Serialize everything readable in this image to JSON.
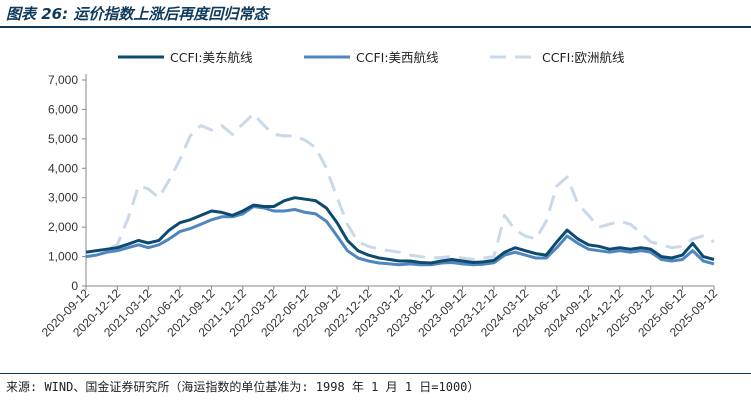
{
  "header": {
    "title": "图表 26:  运价指数上涨后再度回归常态"
  },
  "footer": {
    "source": "来源: WIND、国金证券研究所（海运指数的单位基准为: 1998 年 1 月 1 日=1000）"
  },
  "colors": {
    "us_east": "#0d4a6e",
    "us_west": "#4f86c0",
    "europe": "#c9d9ea",
    "axis": "#888888",
    "rule": "#0f3a5c"
  },
  "chart_data": {
    "type": "line",
    "title": "",
    "xlabel": "",
    "ylabel": "",
    "ylim": [
      0,
      7000
    ],
    "yticks": [
      0,
      1000,
      2000,
      3000,
      4000,
      5000,
      6000,
      7000
    ],
    "ytick_labels": [
      "0",
      "1,000",
      "2,000",
      "3,000",
      "4,000",
      "5,000",
      "6,000",
      "7,000"
    ],
    "xticks": [
      "2020-09-12",
      "2020-12-12",
      "2021-03-12",
      "2021-06-12",
      "2021-09-12",
      "2021-12-12",
      "2022-03-12",
      "2022-06-12",
      "2022-09-12",
      "2022-12-12",
      "2023-03-12",
      "2023-06-12",
      "2023-09-12",
      "2023-12-12",
      "2024-03-12",
      "2024-06-12",
      "2024-09-12",
      "2024-12-12",
      "2025-03-12",
      "2025-06-12",
      "2025-09-12"
    ],
    "legend_position": "top",
    "series": [
      {
        "name": "CCFI:美东航线",
        "style": "solid-thick",
        "x": [
          "2020-09-12",
          "2020-10-12",
          "2020-11-12",
          "2020-12-12",
          "2021-01-12",
          "2021-02-12",
          "2021-03-12",
          "2021-04-12",
          "2021-05-12",
          "2021-06-12",
          "2021-07-12",
          "2021-08-12",
          "2021-09-12",
          "2021-10-12",
          "2021-11-12",
          "2021-12-12",
          "2022-01-12",
          "2022-02-12",
          "2022-03-12",
          "2022-04-12",
          "2022-05-12",
          "2022-06-12",
          "2022-07-12",
          "2022-08-12",
          "2022-09-12",
          "2022-10-12",
          "2022-11-12",
          "2022-12-12",
          "2023-01-12",
          "2023-02-12",
          "2023-03-12",
          "2023-04-12",
          "2023-05-12",
          "2023-06-12",
          "2023-07-12",
          "2023-08-12",
          "2023-09-12",
          "2023-10-12",
          "2023-11-12",
          "2023-12-12",
          "2024-01-12",
          "2024-02-12",
          "2024-03-12",
          "2024-04-12",
          "2024-05-12",
          "2024-06-12",
          "2024-07-12",
          "2024-08-12",
          "2024-09-12",
          "2024-10-12",
          "2024-11-12",
          "2024-12-12",
          "2025-01-12",
          "2025-02-12",
          "2025-03-12",
          "2025-04-12",
          "2025-05-12",
          "2025-06-12",
          "2025-07-12",
          "2025-08-12",
          "2025-09-12"
        ],
        "values": [
          1150,
          1200,
          1250,
          1300,
          1420,
          1550,
          1460,
          1550,
          1900,
          2150,
          2250,
          2400,
          2550,
          2500,
          2400,
          2550,
          2750,
          2700,
          2700,
          2900,
          3000,
          2950,
          2900,
          2650,
          2150,
          1550,
          1200,
          1050,
          950,
          900,
          850,
          850,
          800,
          780,
          850,
          900,
          850,
          800,
          820,
          870,
          1150,
          1300,
          1200,
          1100,
          1050,
          1500,
          1900,
          1600,
          1400,
          1350,
          1250,
          1300,
          1250,
          1300,
          1250,
          1000,
          950,
          1050,
          1450,
          1000,
          900
        ]
      },
      {
        "name": "CCFI:美西航线",
        "style": "solid-medium",
        "x": [
          "2020-09-12",
          "2020-10-12",
          "2020-11-12",
          "2020-12-12",
          "2021-01-12",
          "2021-02-12",
          "2021-03-12",
          "2021-04-12",
          "2021-05-12",
          "2021-06-12",
          "2021-07-12",
          "2021-08-12",
          "2021-09-12",
          "2021-10-12",
          "2021-11-12",
          "2021-12-12",
          "2022-01-12",
          "2022-02-12",
          "2022-03-12",
          "2022-04-12",
          "2022-05-12",
          "2022-06-12",
          "2022-07-12",
          "2022-08-12",
          "2022-09-12",
          "2022-10-12",
          "2022-11-12",
          "2022-12-12",
          "2023-01-12",
          "2023-02-12",
          "2023-03-12",
          "2023-04-12",
          "2023-05-12",
          "2023-06-12",
          "2023-07-12",
          "2023-08-12",
          "2023-09-12",
          "2023-10-12",
          "2023-11-12",
          "2023-12-12",
          "2024-01-12",
          "2024-02-12",
          "2024-03-12",
          "2024-04-12",
          "2024-05-12",
          "2024-06-12",
          "2024-07-12",
          "2024-08-12",
          "2024-09-12",
          "2024-10-12",
          "2024-11-12",
          "2024-12-12",
          "2025-01-12",
          "2025-02-12",
          "2025-03-12",
          "2025-04-12",
          "2025-05-12",
          "2025-06-12",
          "2025-07-12",
          "2025-08-12",
          "2025-09-12"
        ],
        "values": [
          1000,
          1050,
          1150,
          1200,
          1300,
          1400,
          1300,
          1400,
          1600,
          1850,
          1950,
          2100,
          2250,
          2350,
          2350,
          2450,
          2700,
          2650,
          2550,
          2550,
          2600,
          2500,
          2450,
          2200,
          1700,
          1200,
          950,
          850,
          780,
          750,
          720,
          750,
          720,
          720,
          780,
          800,
          750,
          720,
          740,
          790,
          1050,
          1150,
          1050,
          950,
          950,
          1300,
          1700,
          1450,
          1250,
          1200,
          1150,
          1200,
          1150,
          1200,
          1150,
          900,
          850,
          900,
          1200,
          850,
          750
        ]
      },
      {
        "name": "CCFI:欧洲航线",
        "style": "dashed",
        "x": [
          "2020-09-12",
          "2020-10-12",
          "2020-11-12",
          "2020-12-12",
          "2021-01-12",
          "2021-02-12",
          "2021-03-12",
          "2021-04-12",
          "2021-05-12",
          "2021-06-12",
          "2021-07-12",
          "2021-08-12",
          "2021-09-12",
          "2021-10-12",
          "2021-11-12",
          "2021-12-12",
          "2022-01-12",
          "2022-02-12",
          "2022-03-12",
          "2022-04-12",
          "2022-05-12",
          "2022-06-12",
          "2022-07-12",
          "2022-08-12",
          "2022-09-12",
          "2022-10-12",
          "2022-11-12",
          "2022-12-12",
          "2023-01-12",
          "2023-02-12",
          "2023-03-12",
          "2023-04-12",
          "2023-05-12",
          "2023-06-12",
          "2023-07-12",
          "2023-08-12",
          "2023-09-12",
          "2023-10-12",
          "2023-11-12",
          "2023-12-12",
          "2024-01-12",
          "2024-02-12",
          "2024-03-12",
          "2024-04-12",
          "2024-05-12",
          "2024-06-12",
          "2024-07-12",
          "2024-08-12",
          "2024-09-12",
          "2024-10-12",
          "2024-11-12",
          "2024-12-12",
          "2025-01-12",
          "2025-02-12",
          "2025-03-12",
          "2025-04-12",
          "2025-05-12",
          "2025-06-12",
          "2025-07-12",
          "2025-08-12",
          "2025-09-12"
        ],
        "values": [
          1150,
          1200,
          1250,
          1400,
          2300,
          3400,
          3300,
          3000,
          3600,
          4300,
          5100,
          5450,
          5300,
          5450,
          5150,
          5500,
          5850,
          5450,
          5150,
          5100,
          5100,
          4950,
          4700,
          4000,
          3000,
          2100,
          1500,
          1350,
          1250,
          1200,
          1150,
          1050,
          1000,
          950,
          970,
          1000,
          950,
          900,
          950,
          1000,
          2400,
          1900,
          1700,
          1600,
          2200,
          3400,
          3700,
          2800,
          2400,
          2000,
          2100,
          2200,
          2100,
          1800,
          1500,
          1400,
          1300,
          1350,
          1600,
          1700,
          1500
        ]
      }
    ]
  }
}
